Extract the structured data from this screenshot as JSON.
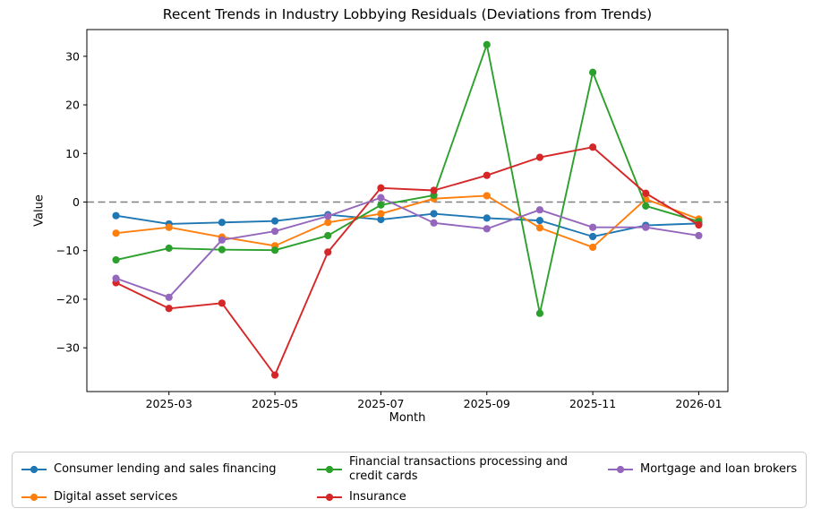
{
  "chart_data": {
    "type": "line",
    "title": "Recent Trends in Industry Lobbying Residuals (Deviations from Trends)",
    "xlabel": "Month",
    "ylabel": "Value",
    "x": [
      "2025-02",
      "2025-03",
      "2025-04",
      "2025-05",
      "2025-06",
      "2025-07",
      "2025-08",
      "2025-09",
      "2025-10",
      "2025-11",
      "2025-12",
      "2026-01"
    ],
    "x_tick_labels": [
      "2025-03",
      "2025-05",
      "2025-07",
      "2025-09",
      "2025-11",
      "2026-01"
    ],
    "x_tick_indices": [
      1,
      3,
      5,
      7,
      9,
      11
    ],
    "y_ticks": [
      -30,
      -20,
      -10,
      0,
      10,
      20,
      30
    ],
    "ylim": [
      -39,
      35.5
    ],
    "grid": false,
    "legend_position": "bottom",
    "zero_line": {
      "y": 0,
      "style": "dashed",
      "color": "#808080"
    },
    "axis_color": "#000000",
    "series": [
      {
        "name": "Consumer lending and sales financing",
        "color": "#1f77b4",
        "values": [
          -2.8,
          -4.5,
          -4.2,
          -3.9,
          -2.6,
          -3.6,
          -2.4,
          -3.3,
          -3.8,
          -7.1,
          -4.8,
          -4.4
        ]
      },
      {
        "name": "Digital asset services",
        "color": "#ff7f0e",
        "values": [
          -6.4,
          -5.2,
          -7.2,
          -9.0,
          -4.2,
          -2.4,
          0.7,
          1.3,
          -5.3,
          -9.3,
          0.6,
          -3.5
        ]
      },
      {
        "name": "Financial transactions processing and credit cards",
        "color": "#2ca02c",
        "values": [
          -11.9,
          -9.5,
          -9.8,
          -9.9,
          -6.9,
          -0.6,
          1.4,
          32.4,
          -22.9,
          26.7,
          -0.8,
          -4.0
        ]
      },
      {
        "name": "Insurance",
        "color": "#d62728",
        "values": [
          -16.6,
          -21.9,
          -20.8,
          -35.6,
          -10.3,
          2.9,
          2.4,
          5.5,
          9.2,
          11.3,
          1.8,
          -4.7
        ]
      },
      {
        "name": "Mortgage and loan brokers",
        "color": "#9467bd",
        "values": [
          -15.7,
          -19.6,
          -7.8,
          -6.0,
          -2.9,
          0.9,
          -4.3,
          -5.5,
          -1.6,
          -5.2,
          -5.2,
          -6.9
        ]
      }
    ],
    "legend_columns": [
      [
        0,
        1
      ],
      [
        2,
        3
      ],
      [
        4
      ]
    ]
  }
}
